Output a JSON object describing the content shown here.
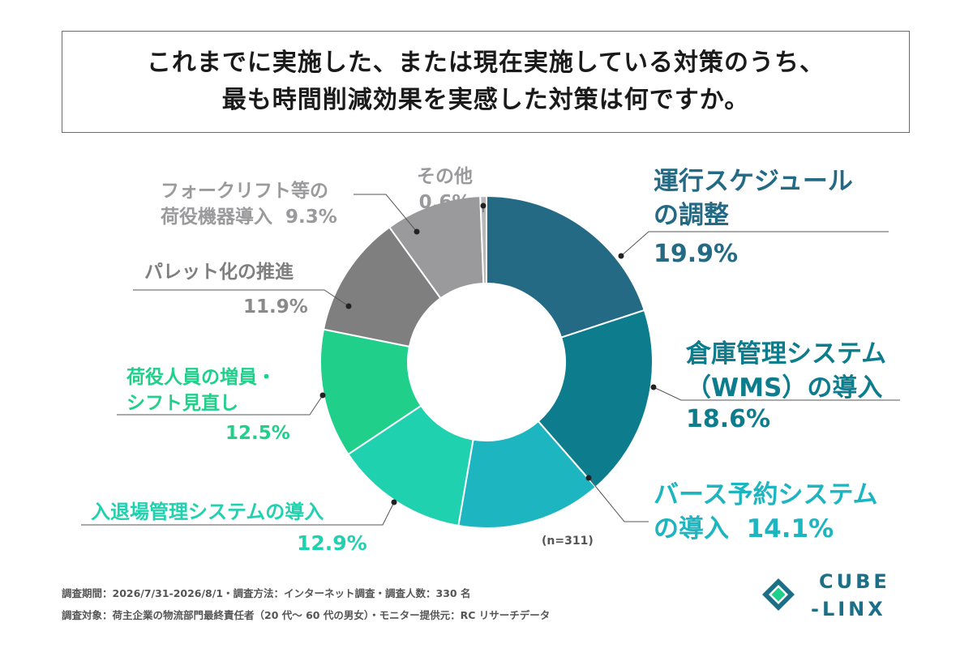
{
  "title": {
    "line1": "これまでに実施した、または現在実施している対策のうち、",
    "line2": "最も時間削減効果を実感した対策は何ですか。"
  },
  "chart_data": {
    "type": "pie",
    "donut": true,
    "n_note": "(n=311)",
    "slices": [
      {
        "label": "運行スケジュールの調整",
        "label_lines": [
          "運行スケジュール",
          "の調整"
        ],
        "pct_text": "19.9%",
        "value": 19.9,
        "color": "#246a85"
      },
      {
        "label": "倉庫管理システム（WMS）の導入",
        "label_lines": [
          "倉庫管理システム",
          "（WMS）の導入"
        ],
        "pct_text": "18.6%",
        "value": 18.6,
        "color": "#0d7c8c"
      },
      {
        "label": "バース予約システムの導入",
        "label_lines": [
          "バース予約システム",
          "の導入"
        ],
        "pct_text": "14.1%",
        "value": 14.1,
        "color": "#1db5c0"
      },
      {
        "label": "入退場管理システムの導入",
        "label_lines": [
          "入退場管理システムの導入"
        ],
        "pct_text": "12.9%",
        "value": 12.9,
        "color": "#1fd1ae"
      },
      {
        "label": "荷役人員の増員・シフト見直し",
        "label_lines": [
          "荷役人員の増員・",
          "シフト見直し"
        ],
        "pct_text": "12.5%",
        "value": 12.5,
        "color": "#1fcf8a"
      },
      {
        "label": "パレット化の推進",
        "label_lines": [
          "パレット化の推進"
        ],
        "pct_text": "11.9%",
        "value": 11.9,
        "color": "#7f7f7f"
      },
      {
        "label": "フォークリフト等の荷役機器導入",
        "label_lines": [
          "フォークリフト等の",
          "荷役機器導入"
        ],
        "pct_text": "9.3%",
        "value": 9.3,
        "color": "#9a9a9c"
      },
      {
        "label": "その他",
        "label_lines": [
          "その他"
        ],
        "pct_text": "0.6%",
        "value": 0.6,
        "color": "#b8b8b8"
      }
    ]
  },
  "footer": {
    "line1": "調査期間：2026/7/31-2026/8/1・調査方法：インターネット調査・調査人数：330 名",
    "line2": "調査対象：荷主企業の物流部門最終責任者（20 代～ 60 代の男女）・モニター提供元：RC リサーチデータ"
  },
  "logo": {
    "line1": "CUBE",
    "line2": "-LINX"
  },
  "colors": {
    "label_dark": "#246a85",
    "label_teal": "#1aa3a8",
    "label_green": "#1ccf9a",
    "label_gray": "#8a8a8a"
  }
}
